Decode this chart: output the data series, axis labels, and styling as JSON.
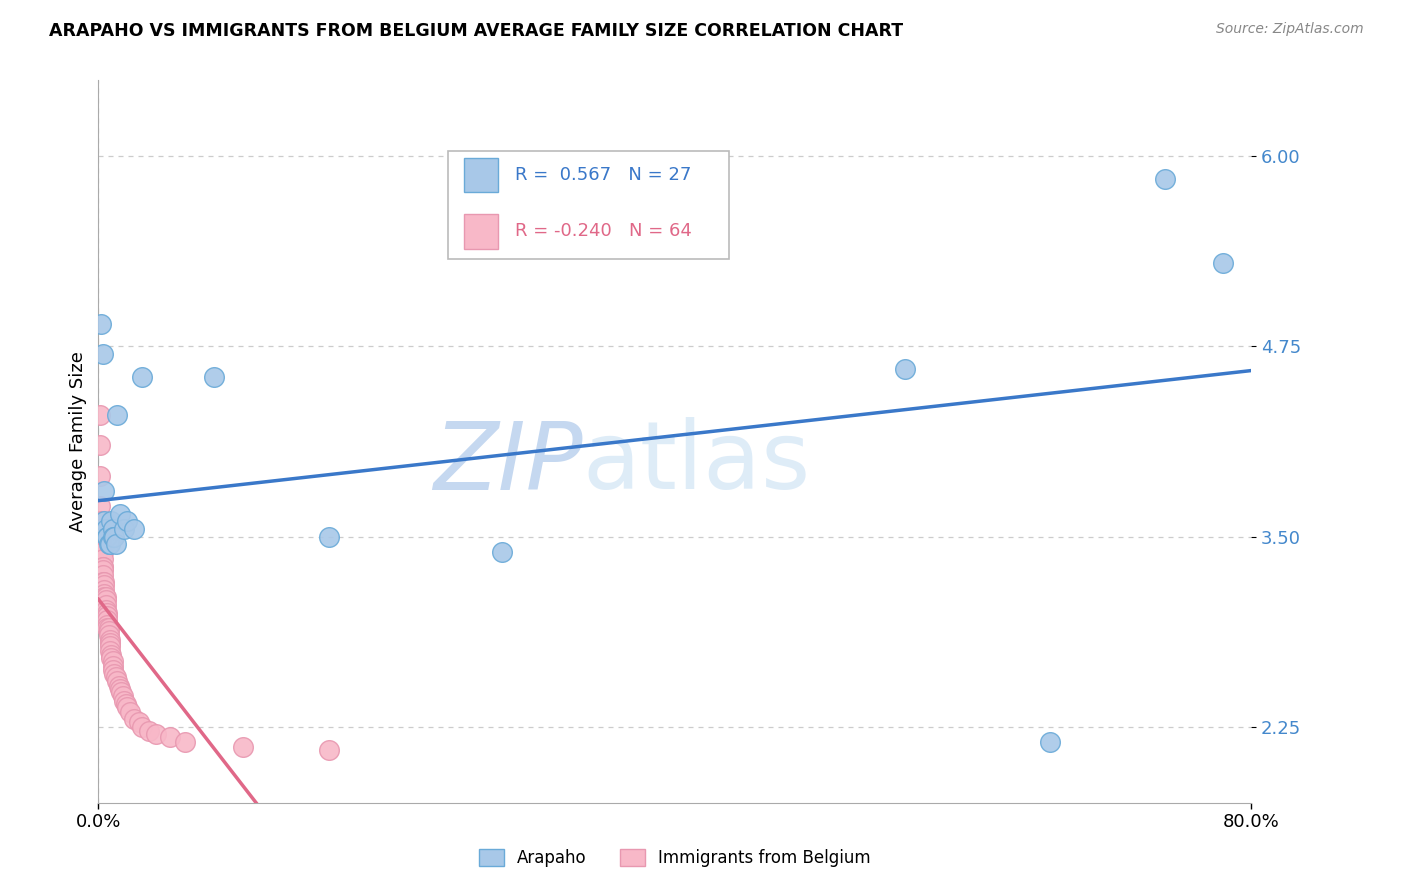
{
  "title": "ARAPAHO VS IMMIGRANTS FROM BELGIUM AVERAGE FAMILY SIZE CORRELATION CHART",
  "source": "Source: ZipAtlas.com",
  "ylabel": "Average Family Size",
  "yticks": [
    2.25,
    3.5,
    4.75,
    6.0
  ],
  "xlim": [
    0.0,
    0.8
  ],
  "ylim": [
    1.75,
    6.5
  ],
  "arapaho_R": "0.567",
  "arapaho_N": "27",
  "belgium_R": "-0.240",
  "belgium_N": "64",
  "arapaho_color": "#a8c8e8",
  "arapaho_line_color": "#3a78c9",
  "arapaho_edge_color": "#6aaad8",
  "belgium_color": "#f8b8c8",
  "belgium_line_color": "#e06888",
  "belgium_edge_color": "#e898b0",
  "watermark_zip_color": "#c5d8f0",
  "watermark_atlas_color": "#c5d8f0",
  "grid_color": "#cccccc",
  "tick_color": "#4488cc",
  "arapaho_x": [
    0.002,
    0.003,
    0.004,
    0.004,
    0.005,
    0.006,
    0.006,
    0.007,
    0.008,
    0.009,
    0.01,
    0.01,
    0.011,
    0.012,
    0.013,
    0.015,
    0.018,
    0.02,
    0.025,
    0.03,
    0.08,
    0.16,
    0.28,
    0.56,
    0.66,
    0.74,
    0.78
  ],
  "arapaho_y": [
    4.9,
    4.7,
    3.8,
    3.6,
    3.55,
    3.5,
    3.5,
    3.45,
    3.45,
    3.6,
    3.55,
    3.5,
    3.5,
    3.45,
    4.3,
    3.65,
    3.55,
    3.6,
    3.55,
    4.55,
    4.55,
    3.5,
    3.4,
    4.6,
    2.15,
    5.85,
    5.3
  ],
  "belgium_x": [
    0.001,
    0.001,
    0.001,
    0.001,
    0.002,
    0.002,
    0.002,
    0.002,
    0.002,
    0.002,
    0.002,
    0.003,
    0.003,
    0.003,
    0.003,
    0.003,
    0.003,
    0.003,
    0.004,
    0.004,
    0.004,
    0.004,
    0.004,
    0.005,
    0.005,
    0.005,
    0.005,
    0.006,
    0.006,
    0.006,
    0.006,
    0.006,
    0.007,
    0.007,
    0.007,
    0.008,
    0.008,
    0.008,
    0.008,
    0.009,
    0.009,
    0.01,
    0.01,
    0.01,
    0.011,
    0.012,
    0.013,
    0.014,
    0.015,
    0.016,
    0.017,
    0.018,
    0.019,
    0.02,
    0.022,
    0.025,
    0.028,
    0.03,
    0.035,
    0.04,
    0.05,
    0.06,
    0.1,
    0.16
  ],
  "belgium_y": [
    4.3,
    4.1,
    3.9,
    3.7,
    3.6,
    3.55,
    3.5,
    3.5,
    3.45,
    3.45,
    3.4,
    3.4,
    3.35,
    3.3,
    3.3,
    3.28,
    3.25,
    3.2,
    3.2,
    3.18,
    3.15,
    3.12,
    3.1,
    3.1,
    3.08,
    3.05,
    3.02,
    3.0,
    2.98,
    2.95,
    2.92,
    2.9,
    2.9,
    2.88,
    2.85,
    2.82,
    2.8,
    2.78,
    2.75,
    2.72,
    2.7,
    2.68,
    2.65,
    2.62,
    2.6,
    2.58,
    2.55,
    2.52,
    2.5,
    2.48,
    2.45,
    2.42,
    2.4,
    2.38,
    2.35,
    2.3,
    2.28,
    2.25,
    2.22,
    2.2,
    2.18,
    2.15,
    2.12,
    2.1
  ]
}
